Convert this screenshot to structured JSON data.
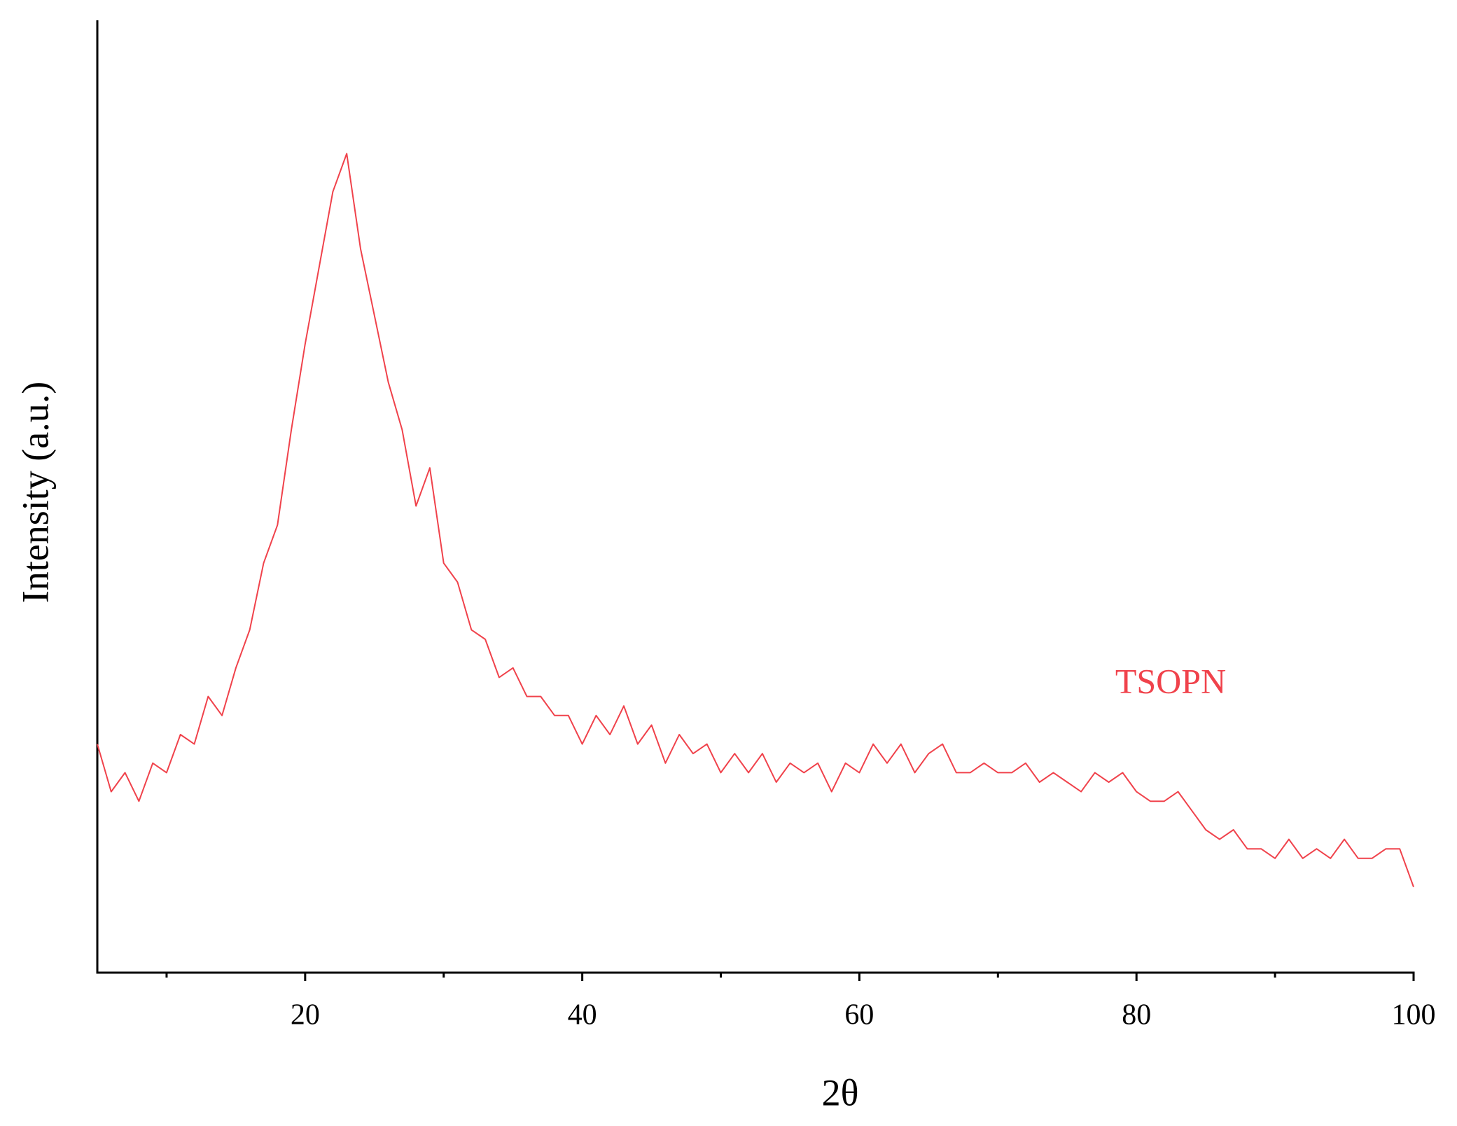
{
  "chart_data": {
    "type": "line",
    "x_label": "2θ",
    "y_label": "Intensity (a.u.)",
    "x": [
      5,
      6,
      7,
      8,
      9,
      10,
      11,
      12,
      13,
      14,
      15,
      16,
      17,
      18,
      19,
      20,
      21,
      22,
      23,
      24,
      25,
      26,
      27,
      28,
      29,
      30,
      31,
      32,
      33,
      34,
      35,
      36,
      37,
      38,
      39,
      40,
      41,
      42,
      43,
      44,
      45,
      46,
      47,
      48,
      49,
      50,
      51,
      52,
      53,
      54,
      55,
      56,
      57,
      58,
      59,
      60,
      61,
      62,
      63,
      64,
      65,
      66,
      67,
      68,
      69,
      70,
      71,
      72,
      73,
      74,
      75,
      76,
      77,
      78,
      79,
      80,
      81,
      82,
      83,
      84,
      85,
      86,
      87,
      88,
      89,
      90,
      91,
      92,
      93,
      94,
      95,
      96,
      97,
      98,
      99,
      100
    ],
    "series": [
      {
        "name": "TSOPN",
        "color": "#f0424b",
        "values": [
          24,
          19,
          21,
          18,
          22,
          21,
          25,
          24,
          29,
          27,
          32,
          36,
          43,
          47,
          57,
          66,
          74,
          82,
          86,
          76,
          69,
          62,
          57,
          49,
          53,
          43,
          41,
          36,
          35,
          31,
          32,
          29,
          29,
          27,
          27,
          24,
          27,
          25,
          28,
          24,
          26,
          22,
          25,
          23,
          24,
          21,
          23,
          21,
          23,
          20,
          22,
          21,
          22,
          19,
          22,
          21,
          24,
          22,
          24,
          21,
          23,
          24,
          21,
          21,
          22,
          21,
          21,
          22,
          20,
          21,
          20,
          19,
          21,
          20,
          21,
          19,
          18,
          18,
          19,
          17,
          15,
          14,
          15,
          13,
          13,
          12,
          14,
          12,
          13,
          12,
          14,
          12,
          12,
          13,
          13,
          9
        ]
      }
    ],
    "xlim": [
      5,
      100
    ],
    "ylim": [
      0,
      100
    ],
    "xticks": [
      20,
      40,
      60,
      80,
      100
    ],
    "xminorticks": [
      10,
      30,
      50,
      70,
      90
    ]
  }
}
